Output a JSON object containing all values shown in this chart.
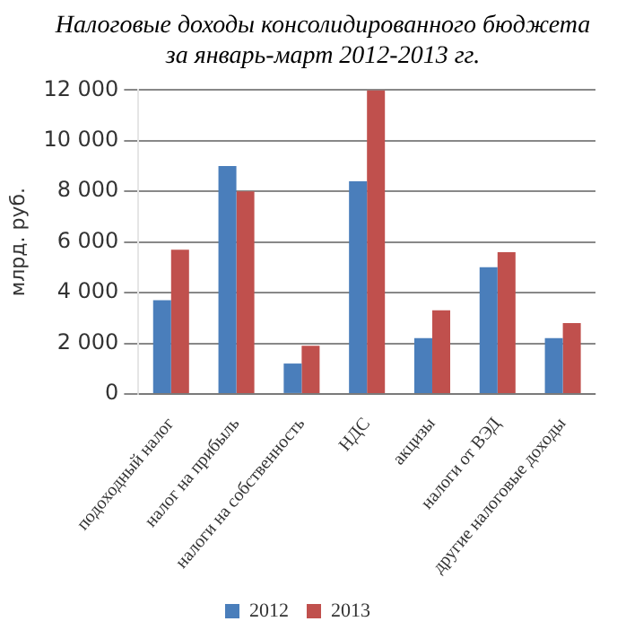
{
  "chart_data": {
    "type": "bar",
    "title": "Налоговые доходы консолидированного бюджета за январь-март 2012-2013 гг.",
    "ylabel": "млрд. руб.",
    "categories": [
      "подоходный налог",
      "налог на прибыль",
      "налоги на собственность",
      "НДС",
      "акцизы",
      "налоги от ВЭД",
      "другие налоговые доходы"
    ],
    "series": [
      {
        "name": "2012",
        "color": "#4a7ebb",
        "values": [
          3700,
          9000,
          1200,
          8400,
          2200,
          5000,
          2200
        ]
      },
      {
        "name": "2013",
        "color": "#c0504d",
        "values": [
          5700,
          8000,
          1900,
          12000,
          3300,
          5600,
          2800
        ]
      }
    ],
    "ylim": [
      0,
      12000
    ],
    "yticks": [
      {
        "value": 0,
        "label": "0"
      },
      {
        "value": 2000,
        "label": "2 000"
      },
      {
        "value": 4000,
        "label": "4 000"
      },
      {
        "value": 6000,
        "label": "6 000"
      },
      {
        "value": 8000,
        "label": "8 000"
      },
      {
        "value": 10000,
        "label": "10 000"
      },
      {
        "value": 12000,
        "label": "12 000"
      }
    ],
    "grid": "y",
    "legend": "bottom"
  }
}
